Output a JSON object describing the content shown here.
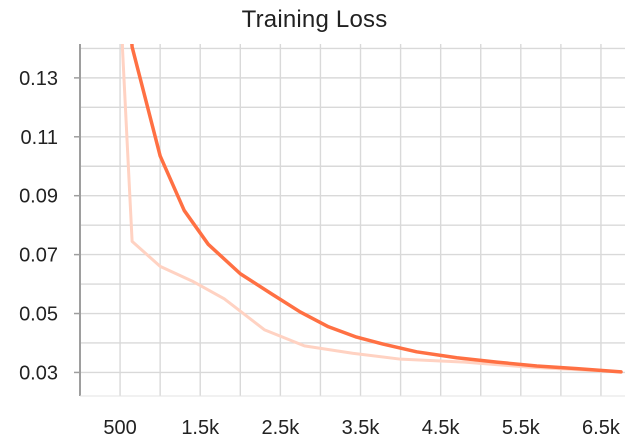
{
  "chart_data": {
    "type": "line",
    "title": "Training Loss",
    "xlabel": "",
    "ylabel": "",
    "xlim": [
      0,
      6800
    ],
    "ylim": [
      0.022,
      0.1415
    ],
    "grid": true,
    "legend": "none",
    "x_ticks": [
      500,
      1500,
      2500,
      3500,
      4500,
      5500,
      6500
    ],
    "x_tick_labels": [
      "500",
      "1.5k",
      "2.5k",
      "3.5k",
      "4.5k",
      "5.5k",
      "6.5k"
    ],
    "y_ticks": [
      0.03,
      0.05,
      0.07,
      0.09,
      0.11,
      0.13
    ],
    "y_tick_labels": [
      "0.03",
      "0.05",
      "0.07",
      "0.09",
      "0.11",
      "0.13"
    ],
    "series": [
      {
        "role": "smoothed",
        "color": "#ff7043",
        "x": [
          500,
          650,
          1000,
          1300,
          1600,
          2000,
          2400,
          2750,
          3100,
          3450,
          3800,
          4200,
          4700,
          5200,
          5700,
          6200,
          6750
        ],
        "y": [
          0.2,
          0.1405,
          0.1035,
          0.085,
          0.0735,
          0.0635,
          0.0565,
          0.0505,
          0.0455,
          0.042,
          0.0395,
          0.037,
          0.035,
          0.0335,
          0.0322,
          0.0313,
          0.0302
        ]
      },
      {
        "role": "raw",
        "color": "#ffd2c2",
        "x": [
          500,
          530,
          650,
          1000,
          1400,
          1800,
          2300,
          2800,
          3400,
          4000,
          4800,
          5600,
          6750
        ],
        "y": [
          0.2,
          0.14,
          0.0745,
          0.066,
          0.061,
          0.055,
          0.0445,
          0.039,
          0.0365,
          0.0345,
          0.0335,
          0.0318,
          0.0302
        ]
      }
    ],
    "colors": {
      "grid": "#d9d9d9",
      "axis": "#9e9e9e",
      "text": "#222222"
    }
  }
}
